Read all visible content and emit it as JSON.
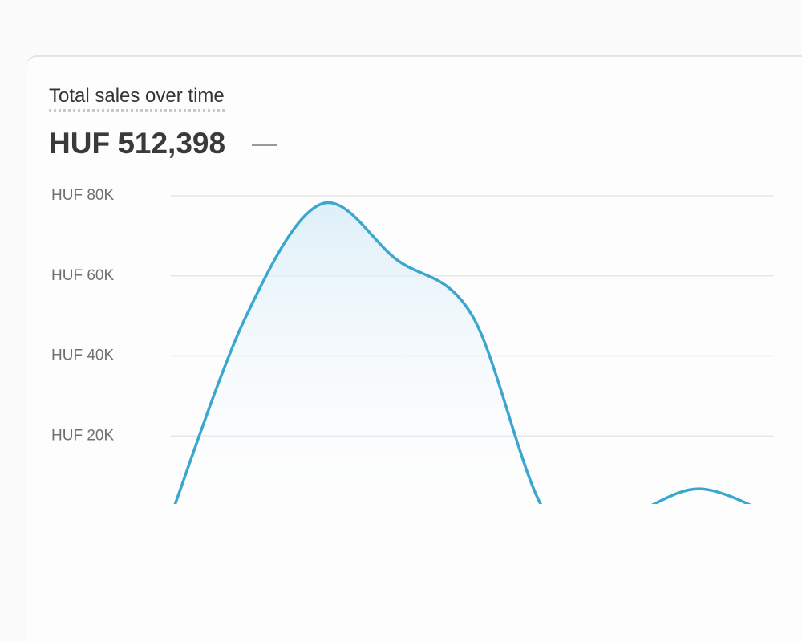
{
  "chart_data": {
    "type": "line",
    "title": "Total sales over time",
    "subtitle": "HUF 512,398",
    "change": "—",
    "categories": [
      null,
      null,
      null,
      null,
      null,
      null,
      null,
      null,
      null
    ],
    "series": [
      {
        "color": "#3ba7cf",
        "values": [
          0,
          50000,
          78000,
          64000,
          50000,
          0,
          0,
          6800,
          0
        ]
      }
    ],
    "ylim": [
      0,
      80000
    ],
    "yticks": [
      {
        "value": 20000,
        "label": "HUF 20K"
      },
      {
        "value": 40000,
        "label": "HUF 40K"
      },
      {
        "value": 60000,
        "label": "HUF 60K"
      },
      {
        "value": 80000,
        "label": "HUF 80K"
      }
    ],
    "grid": true
  }
}
